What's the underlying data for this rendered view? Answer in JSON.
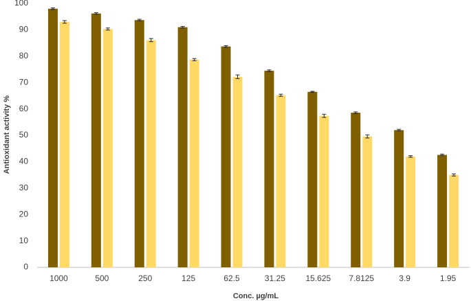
{
  "chart_data": {
    "type": "bar",
    "x_label": "Conc. µg/mL",
    "y_label": "Antioxidant activity %",
    "categories": [
      "1000",
      "500",
      "250",
      "125",
      "62.5",
      "31.25",
      "15.625",
      "7.8125",
      "3.9",
      "1.95"
    ],
    "series": [
      {
        "color": "#7f5f00",
        "values": [
          98,
          96.2,
          93.7,
          91,
          83.7,
          74.5,
          66.5,
          58.6,
          52,
          42.6
        ],
        "errors": [
          0.3,
          0.3,
          0.3,
          0.3,
          0.3,
          0.3,
          0.2,
          0.3,
          0.3,
          0.3
        ]
      },
      {
        "color": "#ffd966",
        "values": [
          93,
          90.3,
          86.1,
          78.7,
          72.2,
          65.2,
          57.4,
          49.6,
          42,
          35
        ],
        "errors": [
          0.5,
          0.4,
          0.6,
          0.4,
          0.7,
          0.4,
          0.6,
          0.6,
          0.3,
          0.4
        ]
      }
    ],
    "ylim": [
      0,
      100
    ],
    "yticks": [
      0,
      10,
      20,
      30,
      40,
      50,
      60,
      70,
      80,
      90,
      100
    ],
    "grid": false
  }
}
